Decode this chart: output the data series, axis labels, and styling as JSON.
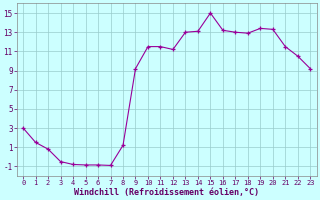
{
  "y": [
    3.0,
    1.5,
    0.8,
    -0.5,
    -0.8,
    -0.85,
    -0.85,
    -0.9,
    1.2,
    9.2,
    11.5,
    11.5,
    11.2,
    13.0,
    13.1,
    15.0,
    13.2,
    13.0,
    12.9,
    13.4,
    13.3,
    11.5,
    10.5,
    9.2
  ],
  "line_color": "#990099",
  "marker_color": "#990099",
  "bg_color": "#ccffff",
  "grid_color": "#99cccc",
  "xlabel": "Windchill (Refroidissement éolien,°C)",
  "ylim": [
    -2,
    16
  ],
  "yticks": [
    -1,
    1,
    3,
    5,
    7,
    9,
    11,
    13,
    15
  ],
  "xlim": [
    -0.5,
    23.5
  ],
  "xtick_fontsize": 5.0,
  "ytick_fontsize": 5.5,
  "xlabel_fontsize": 6.0
}
